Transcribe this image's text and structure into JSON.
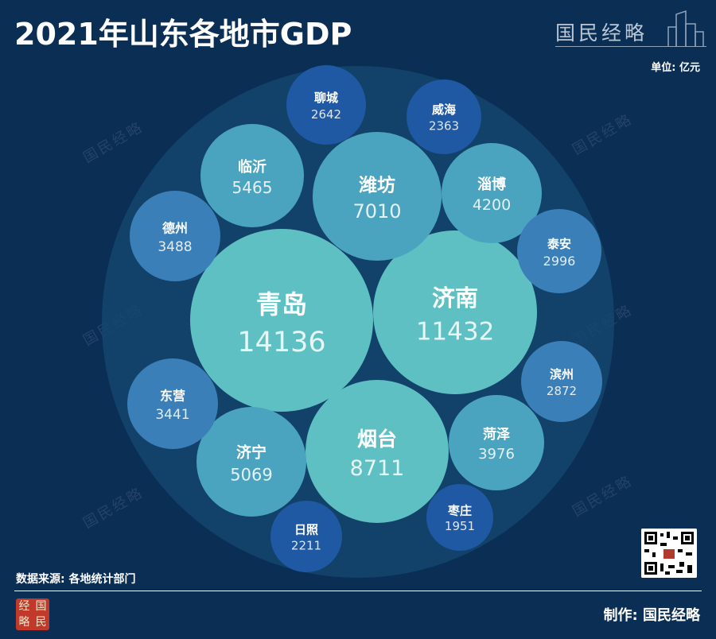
{
  "header": {
    "title": "2021年山东各地市GDP",
    "brand": "国民经略",
    "unit": "单位: 亿元"
  },
  "footer": {
    "source": "数据来源: 各地统计部门",
    "maker": "制作: 国民经略",
    "logo_chars": [
      "经",
      "国",
      "略",
      "民"
    ]
  },
  "watermark": "国民经略",
  "colors": {
    "background": "#0b2e55",
    "outer_circle": "#14456f",
    "large_bubble": "#5fc0c4",
    "medium_bubble": "#4aa4bf",
    "small_bubble": "#3a7fb7",
    "tiny_bubble": "#1f58a3"
  },
  "chart_data": {
    "type": "bubble",
    "unit": "亿元",
    "categories": [
      "青岛",
      "济南",
      "烟台",
      "潍坊",
      "临沂",
      "济宁",
      "淄博",
      "菏泽",
      "德州",
      "东营",
      "泰安",
      "滨州",
      "聊城",
      "威海",
      "日照",
      "枣庄"
    ],
    "values": [
      14136,
      11432,
      8711,
      7010,
      5465,
      5069,
      4200,
      3976,
      3488,
      3441,
      2996,
      2872,
      2642,
      2363,
      2211,
      1951
    ]
  }
}
